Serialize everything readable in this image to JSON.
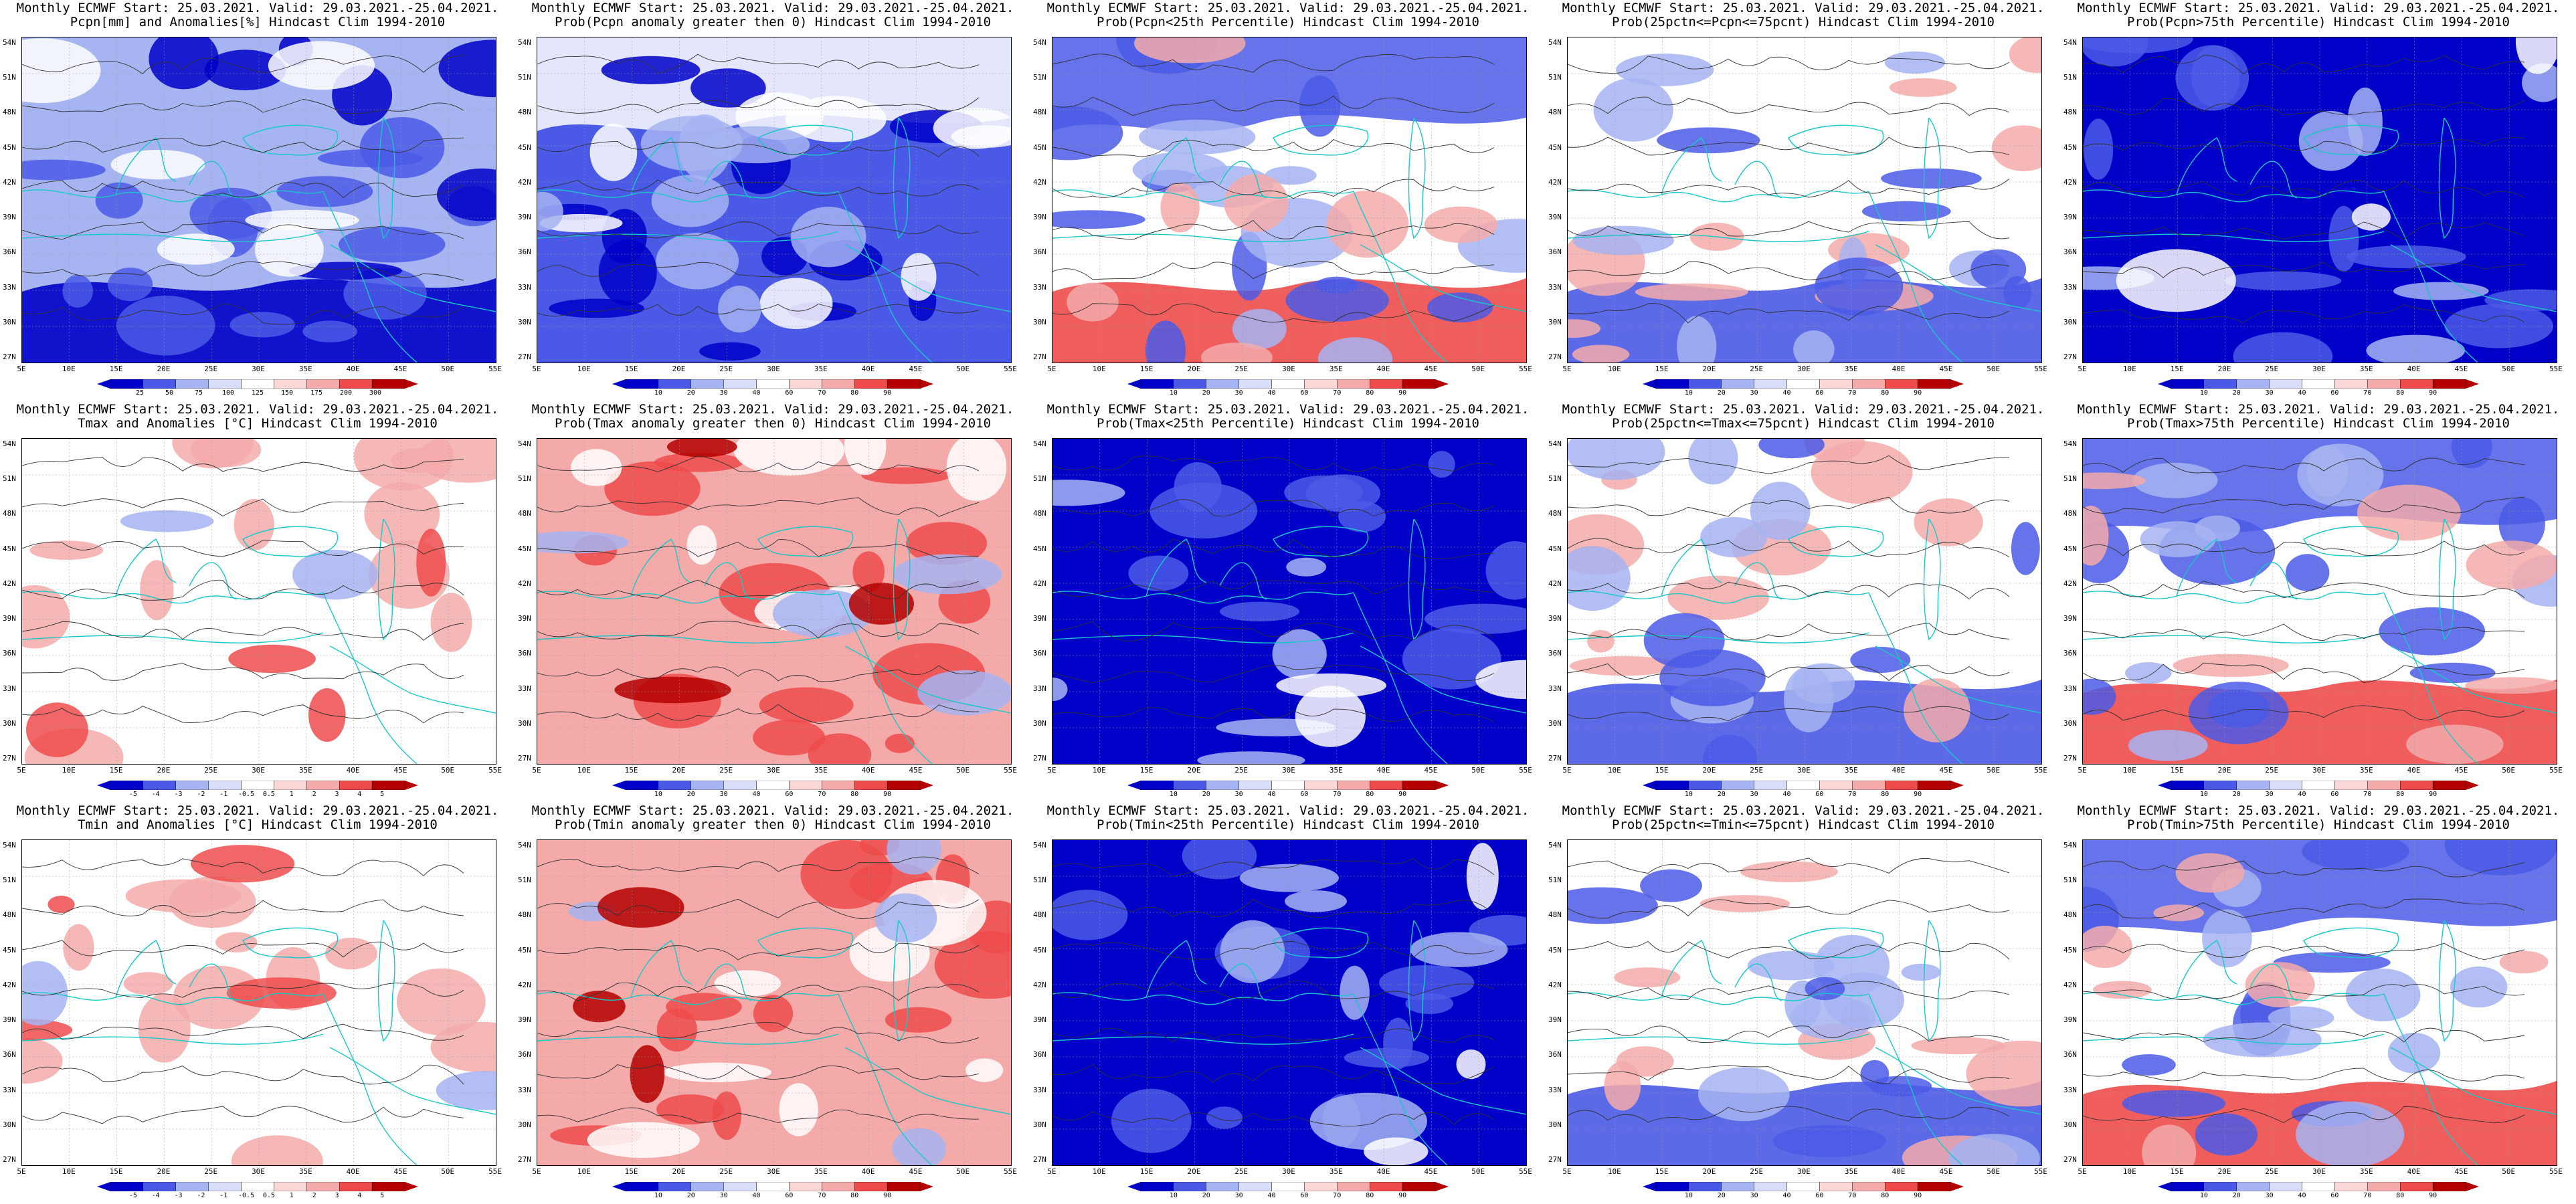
{
  "figure": {
    "lat_labels": [
      "54N",
      "51N",
      "48N",
      "45N",
      "42N",
      "39N",
      "36N",
      "33N",
      "30N",
      "27N"
    ],
    "lon_labels": [
      "5E",
      "10E",
      "15E",
      "20E",
      "25E",
      "30E",
      "35E",
      "40E",
      "45E",
      "50E",
      "55E"
    ],
    "colors": {
      "blue_dark": "#0000c8",
      "blue_mid": "#4b5ae6",
      "blue_light": "#a6b4f2",
      "red_light": "#f5aaaa",
      "red_mid": "#ee4b4b",
      "red_dark": "#b40000",
      "contour": "#303030",
      "coast": "#18c8c8"
    },
    "panels": [
      {
        "title1": "Monthly ECMWF Start: 25.03.2021. Valid: 29.03.2021.-25.04.2021.",
        "title2": "Pcpn[mm] and Anomalies[%] Hindcast Clim 1994-2010",
        "cbar": [
          "25",
          "50",
          "75",
          "100",
          "125",
          "150",
          "175",
          "200",
          "300"
        ],
        "scheme": "pcpn"
      },
      {
        "title1": "Monthly ECMWF Start: 25.03.2021. Valid: 29.03.2021.-25.04.2021.",
        "title2": "Prob(Pcpn anomaly greater then 0) Hindcast Clim 1994-2010",
        "cbar": [
          "10",
          "20",
          "30",
          "40",
          "60",
          "70",
          "80",
          "90"
        ],
        "scheme": "blue"
      },
      {
        "title1": "Monthly ECMWF Start: 25.03.2021. Valid: 29.03.2021.-25.04.2021.",
        "title2": "Prob(Pcpn<25th Percentile) Hindcast Clim 1994-2010",
        "cbar": [
          "10",
          "20",
          "30",
          "40",
          "60",
          "70",
          "80",
          "90"
        ],
        "scheme": "mixed_red_south"
      },
      {
        "title1": "Monthly ECMWF Start: 25.03.2021. Valid: 29.03.2021.-25.04.2021.",
        "title2": "Prob(25pctn<=Pcpn<=75pcnt) Hindcast Clim 1994-2010",
        "cbar": [
          "10",
          "20",
          "30",
          "40",
          "60",
          "70",
          "80",
          "90"
        ],
        "scheme": "mixed_blue_south"
      },
      {
        "title1": "Monthly ECMWF Start: 25.03.2021. Valid: 29.03.2021.-25.04.2021.",
        "title2": "Prob(Pcpn>75th Percentile) Hindcast Clim 1994-2010",
        "cbar": [
          "10",
          "20",
          "30",
          "40",
          "60",
          "70",
          "80",
          "90"
        ],
        "scheme": "deepblue"
      },
      {
        "title1": "Monthly ECMWF Start: 25.03.2021. Valid: 29.03.2021.-25.04.2021.",
        "title2": "Tmax and Anomalies [°C] Hindcast Clim 1994-2010",
        "cbar": [
          "-5",
          "-4",
          "-3",
          "-2",
          "-1",
          "-0.5",
          "0.5",
          "1",
          "2",
          "3",
          "4",
          "5"
        ],
        "scheme": "lightred"
      },
      {
        "title1": "Monthly ECMWF Start: 25.03.2021. Valid: 29.03.2021.-25.04.2021.",
        "title2": "Prob(Tmax anomaly greater then 0) Hindcast Clim 1994-2010",
        "cbar": [
          "10",
          "20",
          "30",
          "40",
          "60",
          "70",
          "80",
          "90"
        ],
        "scheme": "red"
      },
      {
        "title1": "Monthly ECMWF Start: 25.03.2021. Valid: 29.03.2021.-25.04.2021.",
        "title2": "Prob(Tmax<25th Percentile) Hindcast Clim 1994-2010",
        "cbar": [
          "10",
          "20",
          "30",
          "40",
          "60",
          "70",
          "80",
          "90"
        ],
        "scheme": "deepblue"
      },
      {
        "title1": "Monthly ECMWF Start: 25.03.2021. Valid: 29.03.2021.-25.04.2021.",
        "title2": "Prob(25pctn<=Tmax<=75pcnt) Hindcast Clim 1994-2010",
        "cbar": [
          "10",
          "20",
          "30",
          "40",
          "60",
          "70",
          "80",
          "90"
        ],
        "scheme": "mixed_blue_south"
      },
      {
        "title1": "Monthly ECMWF Start: 25.03.2021. Valid: 29.03.2021.-25.04.2021.",
        "title2": "Prob(Tmax>75th Percentile) Hindcast Clim 1994-2010",
        "cbar": [
          "10",
          "20",
          "30",
          "40",
          "60",
          "70",
          "80",
          "90"
        ],
        "scheme": "mixed_red_south"
      },
      {
        "title1": "Monthly ECMWF Start: 25.03.2021. Valid: 29.03.2021.-25.04.2021.",
        "title2": "Tmin and Anomalies [°C] Hindcast Clim 1994-2010",
        "cbar": [
          "-5",
          "-4",
          "-3",
          "-2",
          "-1",
          "-0.5",
          "0.5",
          "1",
          "2",
          "3",
          "4",
          "5"
        ],
        "scheme": "lightred"
      },
      {
        "title1": "Monthly ECMWF Start: 25.03.2021. Valid: 29.03.2021.-25.04.2021.",
        "title2": "Prob(Tmin anomaly greater then 0) Hindcast Clim 1994-2010",
        "cbar": [
          "10",
          "20",
          "30",
          "40",
          "60",
          "70",
          "80",
          "90"
        ],
        "scheme": "red"
      },
      {
        "title1": "Monthly ECMWF Start: 25.03.2021. Valid: 29.03.2021.-25.04.2021.",
        "title2": "Prob(Tmin<25th Percentile) Hindcast Clim 1994-2010",
        "cbar": [
          "10",
          "20",
          "30",
          "40",
          "60",
          "70",
          "80",
          "90"
        ],
        "scheme": "deepblue"
      },
      {
        "title1": "Monthly ECMWF Start: 25.03.2021. Valid: 29.03.2021.-25.04.2021.",
        "title2": "Prob(25pctn<=Tmin<=75pcnt) Hindcast Clim 1994-2010",
        "cbar": [
          "10",
          "20",
          "30",
          "40",
          "60",
          "70",
          "80",
          "90"
        ],
        "scheme": "mixed_blue_south"
      },
      {
        "title1": "Monthly ECMWF Start: 25.03.2021. Valid: 29.03.2021.-25.04.2021.",
        "title2": "Prob(Tmin>75th Percentile) Hindcast Clim 1994-2010",
        "cbar": [
          "10",
          "20",
          "30",
          "40",
          "60",
          "70",
          "80",
          "90"
        ],
        "scheme": "mixed_red_south"
      }
    ]
  }
}
